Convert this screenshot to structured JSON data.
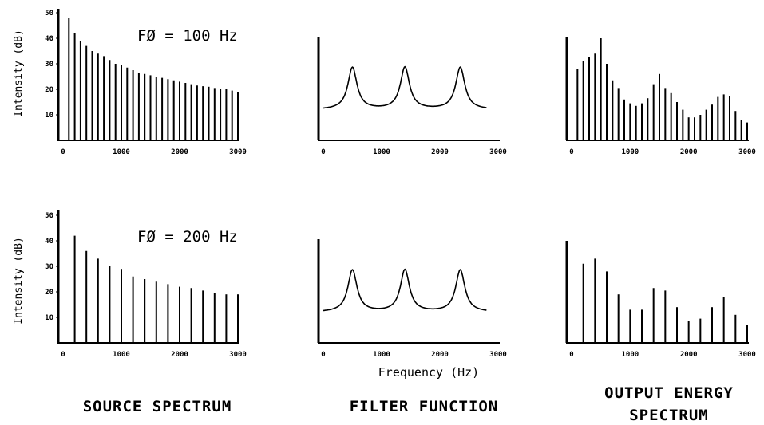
{
  "figure": {
    "xlabel": "Frequency (Hz)",
    "ylabel": "Intensity (dB)",
    "columns": [
      "SOURCE SPECTRUM",
      "FILTER FUNCTION",
      "OUTPUT ENERGY",
      "SPECTRUM"
    ],
    "x_ticks": [
      "0",
      "1000",
      "2000",
      "3000"
    ],
    "y_ticks": [
      "50",
      "40",
      "30",
      "20",
      "10"
    ],
    "f0_labels": [
      "FØ = 100 Hz",
      "FØ = 200 Hz"
    ]
  },
  "chart_data": [
    {
      "id": "source-100",
      "type": "bar",
      "title": "FØ = 100 Hz",
      "ylabel": "Intensity (dB)",
      "xlim": [
        0,
        3000
      ],
      "ylim": [
        0,
        52
      ],
      "x": [
        100,
        200,
        300,
        400,
        500,
        600,
        700,
        800,
        900,
        1000,
        1100,
        1200,
        1300,
        1400,
        1500,
        1600,
        1700,
        1800,
        1900,
        2000,
        2100,
        2200,
        2300,
        2400,
        2500,
        2600,
        2700,
        2800,
        2900,
        3000
      ],
      "values": [
        48,
        42,
        39,
        37,
        35,
        34,
        33,
        31.5,
        30,
        29.5,
        28.5,
        27.5,
        26.5,
        26,
        25.5,
        25,
        24.5,
        24,
        23.5,
        23,
        22.5,
        22,
        21.5,
        21.2,
        21,
        20.5,
        20.2,
        20,
        19.5,
        19
      ]
    },
    {
      "id": "filter-1",
      "type": "line",
      "xlim": [
        0,
        3000
      ],
      "formants_hz": [
        500,
        1400,
        2350
      ],
      "baseline_db": 12,
      "peak_db": 28.5,
      "x_end": 2800
    },
    {
      "id": "output-1",
      "type": "bar",
      "xlim": [
        0,
        3000
      ],
      "ylim": [
        0,
        52
      ],
      "x": [
        100,
        200,
        300,
        400,
        500,
        600,
        700,
        800,
        900,
        1000,
        1100,
        1200,
        1300,
        1400,
        1500,
        1600,
        1700,
        1800,
        1900,
        2000,
        2100,
        2200,
        2300,
        2400,
        2500,
        2600,
        2700,
        2800,
        2900,
        3000
      ],
      "values": [
        28,
        31,
        32.5,
        34,
        40,
        30,
        23.5,
        20.5,
        16,
        14.5,
        13.5,
        14.5,
        16.5,
        22,
        26,
        20.5,
        18.5,
        15,
        12,
        9,
        9,
        10,
        12,
        14,
        17,
        18,
        17.5,
        11.5,
        8,
        7
      ]
    },
    {
      "id": "source-200",
      "type": "bar",
      "title": "FØ = 200 Hz",
      "ylabel": "Intensity (dB)",
      "xlim": [
        0,
        3000
      ],
      "ylim": [
        0,
        52
      ],
      "x": [
        200,
        400,
        600,
        800,
        1000,
        1200,
        1400,
        1600,
        1800,
        2000,
        2200,
        2400,
        2600,
        2800,
        3000
      ],
      "values": [
        42,
        36,
        33,
        30,
        29,
        26,
        25,
        24,
        23,
        22,
        21.5,
        20.5,
        19.5,
        19,
        19
      ]
    },
    {
      "id": "filter-2",
      "type": "line",
      "xlabel": "Frequency (Hz)",
      "xlim": [
        0,
        3000
      ],
      "formants_hz": [
        500,
        1400,
        2350
      ],
      "baseline_db": 12,
      "peak_db": 28.5,
      "x_end": 2800
    },
    {
      "id": "output-2",
      "type": "bar",
      "xlim": [
        0,
        3000
      ],
      "ylim": [
        0,
        52
      ],
      "x": [
        200,
        400,
        600,
        800,
        1000,
        1200,
        1400,
        1600,
        1800,
        2000,
        2200,
        2400,
        2600,
        2800,
        3000
      ],
      "values": [
        31,
        33,
        28,
        19,
        13,
        13,
        21.5,
        20.5,
        14,
        8.5,
        9.5,
        14,
        18,
        11,
        7
      ]
    }
  ]
}
